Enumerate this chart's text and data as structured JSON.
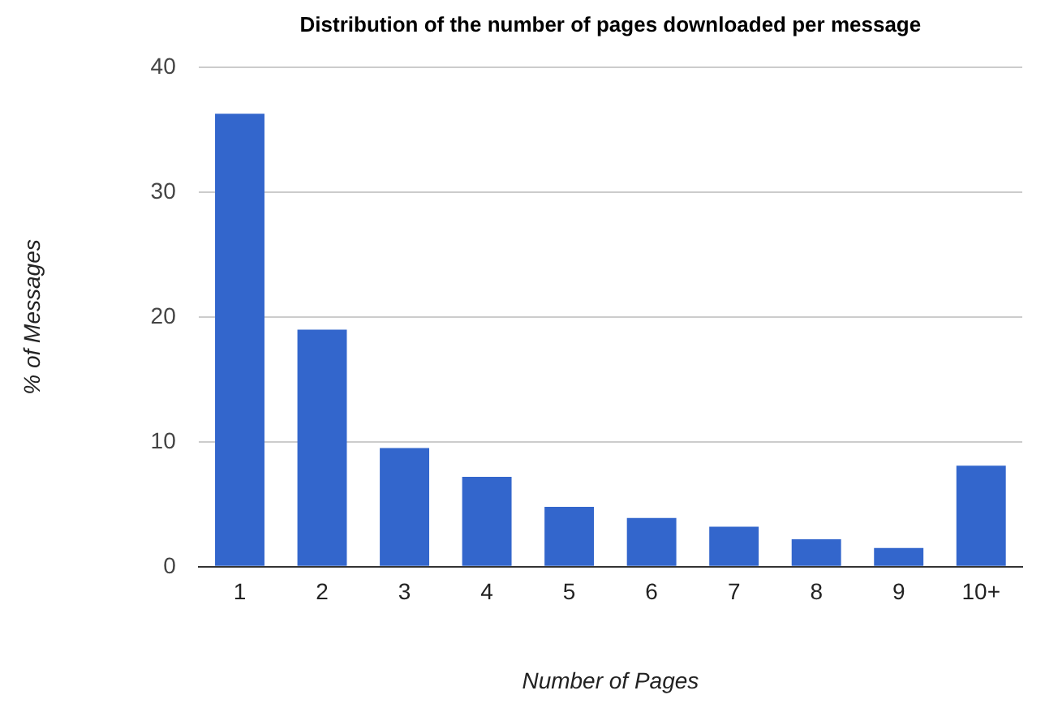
{
  "chart_data": {
    "type": "bar",
    "title": "Distribution of the number of pages downloaded per message",
    "xlabel": "Number of Pages",
    "ylabel": "% of Messages",
    "categories": [
      "1",
      "2",
      "3",
      "4",
      "5",
      "6",
      "7",
      "8",
      "9",
      "10+"
    ],
    "values": [
      36.3,
      19.0,
      9.5,
      7.2,
      4.8,
      3.9,
      3.2,
      2.2,
      1.5,
      8.1
    ],
    "color": "#3366cc",
    "ylim": [
      0,
      40
    ],
    "yticks": [
      0,
      10,
      20,
      30,
      40
    ],
    "grid": "y",
    "legend": false
  }
}
